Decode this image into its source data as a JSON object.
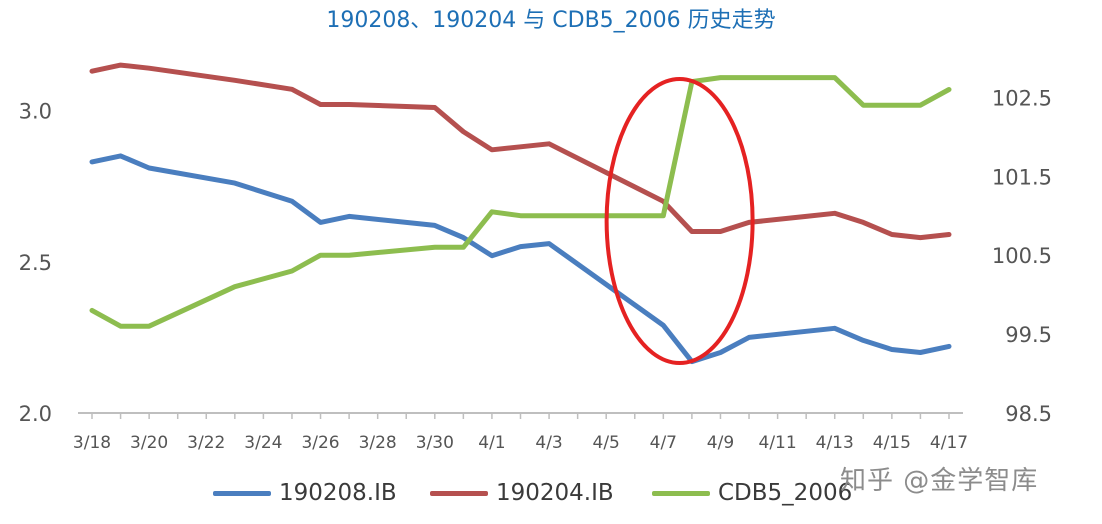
{
  "title": "190208、190204 与 CDB5_2006 历史走势",
  "watermark": "知乎 @金学智库",
  "colors": {
    "s190208": "#4a7ebf",
    "s190204": "#b5504f",
    "cdb": "#8dbd4f",
    "annotation": "#e52222",
    "axis": "#bfbfbf"
  },
  "chart_data": {
    "type": "line",
    "title": "190208、190204 与 CDB5_2006 历史走势",
    "x": [
      "3/18",
      "3/19",
      "3/20",
      "3/21",
      "3/22",
      "3/23",
      "3/24",
      "3/25",
      "3/26",
      "3/27",
      "3/28",
      "3/29",
      "3/30",
      "3/31",
      "4/1",
      "4/2",
      "4/3",
      "4/4",
      "4/5",
      "4/6",
      "4/7",
      "4/8",
      "4/9",
      "4/10",
      "4/11",
      "4/12",
      "4/13",
      "4/14",
      "4/15",
      "4/16",
      "4/17"
    ],
    "x_tick_labels": [
      "3/18",
      "3/20",
      "3/22",
      "3/24",
      "3/26",
      "3/28",
      "3/30",
      "4/1",
      "4/3",
      "4/5",
      "4/7",
      "4/9",
      "4/11",
      "4/13",
      "4/15",
      "4/17"
    ],
    "y_left": {
      "ylim": [
        2.0,
        3.2
      ],
      "ticks": [
        "2.0",
        "2.5",
        "3.0"
      ]
    },
    "y_right": {
      "ylim": [
        98.5,
        103.1
      ],
      "ticks": [
        "98.5",
        "99.5",
        "100.5",
        "101.5",
        "102.5"
      ]
    },
    "series": [
      {
        "name": "190208.IB",
        "axis": "left",
        "values": [
          2.83,
          2.85,
          2.81,
          null,
          null,
          2.76,
          null,
          2.7,
          2.63,
          2.65,
          null,
          null,
          2.62,
          2.58,
          2.52,
          2.55,
          2.56,
          null,
          null,
          null,
          2.29,
          2.17,
          2.2,
          2.25,
          null,
          2.27,
          2.28,
          2.24,
          2.21,
          2.2,
          2.22
        ]
      },
      {
        "name": "190204.IB",
        "axis": "left",
        "values": [
          3.13,
          3.15,
          3.14,
          null,
          null,
          3.1,
          null,
          3.07,
          3.02,
          3.02,
          null,
          null,
          3.01,
          2.93,
          2.87,
          2.88,
          2.89,
          null,
          null,
          null,
          2.7,
          2.6,
          2.6,
          2.63,
          null,
          2.65,
          2.66,
          2.63,
          2.59,
          2.58,
          2.59
        ]
      },
      {
        "name": "CDB5_2006",
        "axis": "right",
        "values": [
          99.8,
          99.6,
          99.6,
          null,
          null,
          100.1,
          null,
          100.3,
          100.5,
          100.5,
          null,
          null,
          100.6,
          100.6,
          101.05,
          101.0,
          101.0,
          null,
          null,
          101.0,
          101.0,
          102.7,
          102.75,
          102.75,
          102.75,
          102.75,
          102.75,
          102.4,
          102.4,
          102.4,
          102.6
        ]
      }
    ],
    "annotation": {
      "type": "ellipse",
      "around": [
        "4/7",
        "4/8"
      ]
    },
    "grid": false,
    "legend": "bottom"
  }
}
